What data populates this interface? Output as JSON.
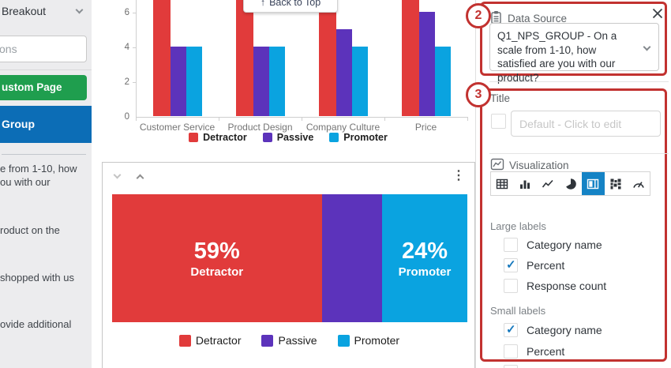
{
  "colors": {
    "custom_page_green": "#1f9e4e",
    "sidebar_active_blue": "#0c6db6",
    "viz_selected_blue": "#1583c5",
    "checkbox_check_blue": "#1779bd"
  },
  "icons": {
    "back_arrow_up": "↑",
    "kebab_menu": "⋮"
  },
  "sidebar": {
    "breakout_label": "Breakout",
    "search_placeholder": "ons",
    "custom_page_label": "ustom Page",
    "group_label": "Group",
    "questions": [
      {
        "lines": [
          "e from 1-10, how",
          "ou with our"
        ]
      },
      {
        "lines": [
          "roduct on the"
        ]
      },
      {
        "lines": [
          "shopped with us"
        ]
      },
      {
        "lines": [
          "ovide additional"
        ]
      }
    ]
  },
  "back_to_top": {
    "label": "Back to Top"
  },
  "chart_data": [
    {
      "type": "bar",
      "categories": [
        "Customer Service",
        "Product Design",
        "Company Culture",
        "Price"
      ],
      "series": [
        {
          "name": "Detractor",
          "color": "#e13b3b",
          "values": [
            7,
            7,
            7,
            7
          ],
          "note": "red bars are cropped at the top edge of the screenshot; true values > 6.6"
        },
        {
          "name": "Passive",
          "color": "#5c33bb",
          "values": [
            4,
            4,
            5,
            6
          ]
        },
        {
          "name": "Promoter",
          "color": "#0aa3e0",
          "values": [
            4,
            4,
            4,
            4
          ]
        }
      ],
      "yticks": [
        0,
        2,
        4,
        6
      ],
      "ylim": [
        0,
        6.7
      ],
      "grid": false,
      "legend_position": "bottom"
    },
    {
      "type": "stacked-bar",
      "segments": [
        {
          "name": "Detractor",
          "percent": 59,
          "percent_label": "59%",
          "color": "#e13b3b"
        },
        {
          "name": "Passive",
          "percent": 17,
          "color": "#5c33bb"
        },
        {
          "name": "Promoter",
          "percent": 24,
          "percent_label": "24%",
          "color": "#0aa3e0"
        }
      ],
      "legend": [
        "Detractor",
        "Passive",
        "Promoter"
      ],
      "legend_position": "bottom"
    }
  ],
  "inspector": {
    "data_source": {
      "label": "Data Source",
      "selected_value": "Q1_NPS_GROUP - On a scale from 1-10, how satisfied are you with our product?"
    },
    "title_section": {
      "label": "Title",
      "enabled": false,
      "placeholder": "Default - Click to edit"
    },
    "visualization": {
      "label": "Visualization",
      "selected_index": 4,
      "options": [
        {
          "name": "table"
        },
        {
          "name": "bar-chart"
        },
        {
          "name": "line-chart"
        },
        {
          "name": "pie-chart"
        },
        {
          "name": "stacked-bar"
        },
        {
          "name": "mosaic-grid"
        },
        {
          "name": "gauge"
        }
      ]
    },
    "large_labels": {
      "label": "Large labels",
      "options": [
        {
          "label": "Category name",
          "checked": false
        },
        {
          "label": "Percent",
          "checked": true
        },
        {
          "label": "Response count",
          "checked": false
        }
      ]
    },
    "small_labels": {
      "label": "Small labels",
      "options": [
        {
          "label": "Category name",
          "checked": true
        },
        {
          "label": "Percent",
          "checked": false
        }
      ]
    }
  },
  "annotations": {
    "badge_2": "2",
    "badge_3": "3",
    "color": "#c23230"
  }
}
